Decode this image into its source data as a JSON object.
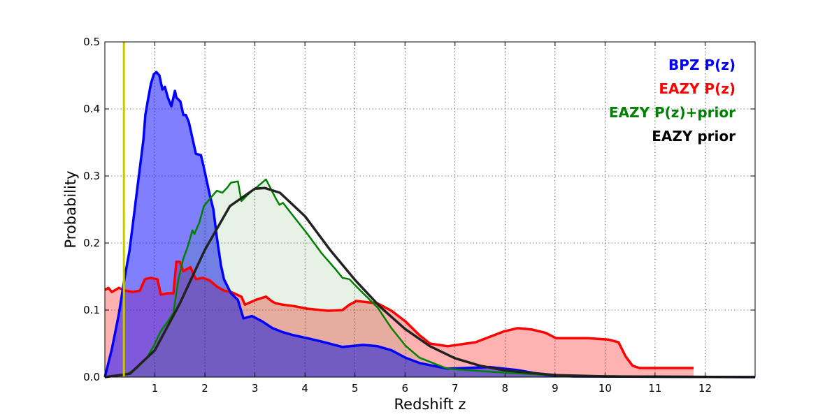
{
  "chart_data": {
    "type": "area",
    "title": "",
    "xlabel": "Redshift z",
    "ylabel": "Probability",
    "xlim": [
      0,
      13
    ],
    "ylim": [
      0,
      0.5
    ],
    "xticks": [
      1,
      2,
      3,
      4,
      5,
      6,
      7,
      8,
      9,
      10,
      11,
      12
    ],
    "yticks": [
      0.0,
      0.1,
      0.2,
      0.3,
      0.4,
      0.5
    ],
    "ytick_labels": [
      "0.0",
      "0.1",
      "0.2",
      "0.3",
      "0.4",
      "0.5"
    ],
    "grid": true,
    "legend_position": "top-right",
    "vline": {
      "x": 0.38,
      "color": "#c8c800"
    },
    "series": [
      {
        "name": "EAZY P(z)",
        "color": "#ff0000",
        "fill": "rgba(255,0,0,0.3)",
        "x": [
          0,
          0.07,
          0.14,
          0.28,
          0.42,
          0.56,
          0.7,
          0.8,
          0.91,
          1.05,
          1.12,
          1.26,
          1.37,
          1.43,
          1.5,
          1.57,
          1.71,
          1.82,
          1.96,
          2.1,
          2.24,
          2.38,
          2.52,
          2.73,
          2.8,
          3.01,
          3.22,
          3.35,
          3.42,
          3.56,
          3.77,
          4.05,
          4.47,
          4.75,
          4.89,
          5.03,
          5.45,
          5.73,
          6.01,
          6.29,
          6.5,
          6.85,
          7.41,
          7.97,
          8.25,
          8.53,
          8.81,
          9.02,
          9.65,
          10.06,
          10.27,
          10.41,
          10.55,
          10.69,
          11.77
        ],
        "y": [
          0.13,
          0.133,
          0.127,
          0.133,
          0.129,
          0.127,
          0.129,
          0.146,
          0.148,
          0.146,
          0.123,
          0.125,
          0.125,
          0.172,
          0.172,
          0.158,
          0.164,
          0.146,
          0.148,
          0.144,
          0.135,
          0.129,
          0.127,
          0.12,
          0.108,
          0.115,
          0.12,
          0.1125,
          0.11,
          0.108,
          0.106,
          0.102,
          0.099,
          0.1,
          0.108,
          0.1135,
          0.11,
          0.099,
          0.083,
          0.0625,
          0.05,
          0.046,
          0.052,
          0.068,
          0.073,
          0.071,
          0.066,
          0.058,
          0.058,
          0.056,
          0.052,
          0.031,
          0.017,
          0.0135,
          0.0135
        ]
      },
      {
        "name": "BPZ P(z)",
        "color": "#0000ff",
        "fill": "rgba(0,0,255,0.5)",
        "x": [
          0,
          0.14,
          0.28,
          0.39,
          0.49,
          0.56,
          0.63,
          0.7,
          0.77,
          0.81,
          0.87,
          0.92,
          0.98,
          1.03,
          1.09,
          1.15,
          1.2,
          1.26,
          1.33,
          1.4,
          1.43,
          1.51,
          1.57,
          1.62,
          1.68,
          1.82,
          1.92,
          1.98,
          2.1,
          2.17,
          2.24,
          2.32,
          2.38,
          2.52,
          2.66,
          2.77,
          2.94,
          3.15,
          3.35,
          3.56,
          3.77,
          4.05,
          4.33,
          4.75,
          5.17,
          5.45,
          5.73,
          6.01,
          6.29,
          6.85,
          7.69,
          8.25,
          8.81,
          9.37,
          13
        ],
        "y": [
          0,
          0.042,
          0.094,
          0.146,
          0.188,
          0.229,
          0.271,
          0.3125,
          0.354,
          0.391,
          0.417,
          0.4375,
          0.452,
          0.455,
          0.45,
          0.429,
          0.433,
          0.417,
          0.404,
          0.427,
          0.417,
          0.411,
          0.391,
          0.391,
          0.38,
          0.333,
          0.331,
          0.3125,
          0.271,
          0.25,
          0.208,
          0.167,
          0.146,
          0.125,
          0.115,
          0.0875,
          0.091,
          0.083,
          0.073,
          0.067,
          0.0625,
          0.058,
          0.053,
          0.045,
          0.048,
          0.046,
          0.04,
          0.029,
          0.021,
          0.0125,
          0.015,
          0.0104,
          0.003,
          0.001,
          0
        ]
      },
      {
        "name": "EAZY P(z)+prior",
        "color": "#008000",
        "fill": "rgba(0,128,0,0.1)",
        "x": [
          0,
          0.42,
          0.63,
          0.84,
          0.98,
          1.12,
          1.26,
          1.37,
          1.47,
          1.57,
          1.65,
          1.75,
          1.79,
          1.89,
          1.98,
          2.1,
          2.24,
          2.35,
          2.45,
          2.52,
          2.66,
          2.73,
          2.87,
          3.08,
          3.22,
          3.42,
          3.49,
          3.56,
          3.77,
          4.05,
          4.33,
          4.61,
          4.75,
          4.89,
          5.03,
          5.45,
          5.73,
          6.01,
          6.29,
          6.85,
          7.69,
          9.09,
          13
        ],
        "y": [
          0,
          0.004,
          0.0125,
          0.029,
          0.047,
          0.069,
          0.083,
          0.096,
          0.146,
          0.177,
          0.193,
          0.219,
          0.2135,
          0.231,
          0.255,
          0.266,
          0.278,
          0.275,
          0.283,
          0.29,
          0.292,
          0.2625,
          0.273,
          0.286,
          0.295,
          0.266,
          0.257,
          0.26,
          0.24,
          0.2135,
          0.185,
          0.161,
          0.148,
          0.146,
          0.135,
          0.104,
          0.073,
          0.047,
          0.029,
          0.0125,
          0.008,
          0.002,
          0
        ]
      },
      {
        "name": "EAZY prior",
        "color": "#222222",
        "fill": "none",
        "x": [
          0,
          0.5,
          1,
          1.5,
          2,
          2.5,
          3,
          3.2,
          3.5,
          4,
          4.5,
          5,
          5.5,
          6,
          6.5,
          7,
          7.5,
          8,
          9,
          10,
          13
        ],
        "y": [
          0,
          0.005,
          0.04,
          0.11,
          0.19,
          0.255,
          0.281,
          0.282,
          0.275,
          0.24,
          0.19,
          0.145,
          0.105,
          0.072,
          0.046,
          0.028,
          0.017,
          0.01,
          0.003,
          0.001,
          0
        ]
      }
    ],
    "legend_order": [
      "BPZ P(z)",
      "EAZY P(z)",
      "EAZY P(z)+prior",
      "EAZY prior"
    ]
  }
}
